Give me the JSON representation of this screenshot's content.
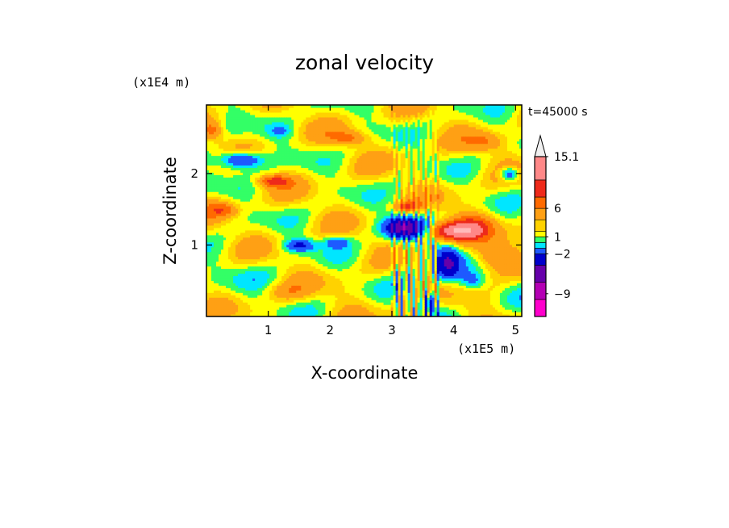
{
  "chart_data": {
    "type": "heatmap",
    "title": "zonal velocity",
    "time_label": "t=45000 s",
    "xlabel": "X-coordinate",
    "ylabel": "Z-coordinate",
    "x_scale_label": "(x1E5 m)",
    "y_scale_label": "(x1E4 m)",
    "x_ticks": [
      "1",
      "2",
      "3",
      "4",
      "5"
    ],
    "y_ticks": [
      "1",
      "2"
    ],
    "x_tick_values": [
      1,
      2,
      3,
      4,
      5
    ],
    "y_tick_values": [
      1,
      2
    ],
    "xlim": [
      0,
      5.1
    ],
    "ylim": [
      0,
      2.96
    ],
    "colorbar": {
      "labels": [
        "15.1",
        "6",
        "1",
        "−2",
        "−9"
      ],
      "label_values": [
        15.1,
        6,
        1,
        -2,
        -9
      ],
      "levels": [
        {
          "color": "#ff00cc"
        },
        {
          "color": "#b400b4"
        },
        {
          "color": "#6600aa"
        },
        {
          "color": "#0000cc"
        },
        {
          "color": "#1e5aff"
        },
        {
          "color": "#00e6ff"
        },
        {
          "color": "#33ff66"
        },
        {
          "color": "#ffff00"
        },
        {
          "color": "#ffd200"
        },
        {
          "color": "#ffa014"
        },
        {
          "color": "#ff6a00"
        },
        {
          "color": "#ee2a1a"
        },
        {
          "color": "#ff8888"
        },
        {
          "color": "#ffbbbb"
        }
      ],
      "extend_top_color": "#f0f0f0"
    },
    "features": [
      {
        "x": 0.55,
        "z": 2.2,
        "value": -7,
        "rx": 0.35,
        "rz": 0.12
      },
      {
        "x": 1.5,
        "z": 1.0,
        "value": -5,
        "rx": 0.25,
        "rz": 0.09
      },
      {
        "x": 2.1,
        "z": 1.05,
        "value": -4,
        "rx": 0.2,
        "rz": 0.08
      },
      {
        "x": 3.2,
        "z": 1.25,
        "value": -9,
        "rx": 0.35,
        "rz": 0.15
      },
      {
        "x": 3.9,
        "z": 0.75,
        "value": -8,
        "rx": 0.2,
        "rz": 0.25
      },
      {
        "x": 3.6,
        "z": 0.2,
        "value": -6,
        "rx": 0.12,
        "rz": 0.15
      },
      {
        "x": 4.9,
        "z": 2.0,
        "value": -6,
        "rx": 0.15,
        "rz": 0.09
      },
      {
        "x": 4.3,
        "z": 0.5,
        "value": -3,
        "rx": 0.2,
        "rz": 0.12
      },
      {
        "x": 1.2,
        "z": 2.6,
        "value": -2,
        "rx": 0.2,
        "rz": 0.1
      },
      {
        "x": 0.6,
        "z": 0.5,
        "value": -0.5,
        "rx": 0.8,
        "rz": 0.35
      },
      {
        "x": 3.9,
        "z": 1.2,
        "value": 8,
        "rx": 0.4,
        "rz": 0.13
      },
      {
        "x": 4.3,
        "z": 1.25,
        "value": 5,
        "rx": 0.35,
        "rz": 0.18
      },
      {
        "x": 4.6,
        "z": 0.85,
        "value": 4,
        "rx": 0.3,
        "rz": 0.2
      },
      {
        "x": 1.1,
        "z": 1.9,
        "value": 6,
        "rx": 0.25,
        "rz": 0.08
      },
      {
        "x": 0.25,
        "z": 1.5,
        "value": 4,
        "rx": 0.25,
        "rz": 0.1
      },
      {
        "x": 0.1,
        "z": 2.6,
        "value": 4,
        "rx": 0.15,
        "rz": 0.12
      },
      {
        "x": 2.3,
        "z": 2.5,
        "value": 4,
        "rx": 0.3,
        "rz": 0.1
      },
      {
        "x": 1.3,
        "z": 0.35,
        "value": 2,
        "rx": 0.35,
        "rz": 0.12
      },
      {
        "x": 3.25,
        "z": 1.55,
        "value": 5,
        "rx": 0.2,
        "rz": 0.07
      },
      {
        "x": 4.5,
        "z": 2.45,
        "value": 3,
        "rx": 0.3,
        "rz": 0.12
      }
    ]
  }
}
